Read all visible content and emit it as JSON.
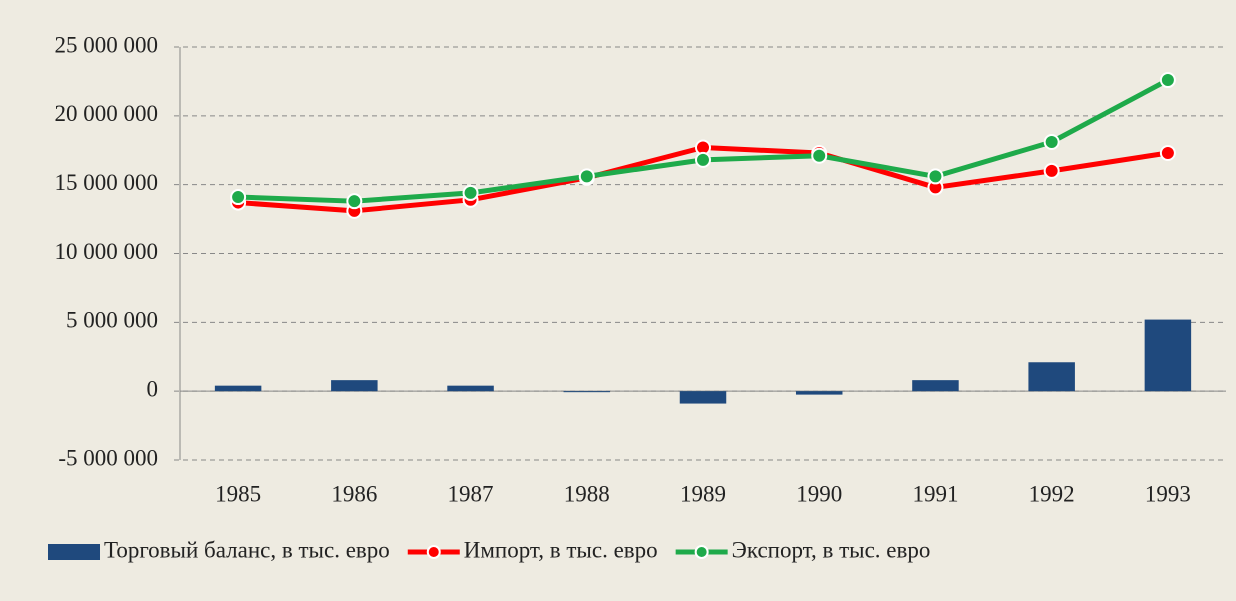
{
  "chart_data": {
    "type": "combo",
    "categories": [
      "1985",
      "1986",
      "1987",
      "1988",
      "1989",
      "1990",
      "1991",
      "1992",
      "1993"
    ],
    "series": [
      {
        "name": "Торговый баланс, в тыс. евро",
        "type": "bar",
        "color": "#1f497d",
        "values": [
          400000,
          800000,
          400000,
          -60000,
          -900000,
          -250000,
          800000,
          2100000,
          5200000
        ]
      },
      {
        "name": "Импорт, в тыс. евро",
        "type": "line",
        "color": "#ff0000",
        "values": [
          13700000,
          13100000,
          13900000,
          15500000,
          17700000,
          17300000,
          14800000,
          16000000,
          17300000
        ]
      },
      {
        "name": "Экспорт, в тыс. евро",
        "type": "line",
        "color": "#1eaa4a",
        "values": [
          14100000,
          13800000,
          14400000,
          15600000,
          16800000,
          17100000,
          15600000,
          18100000,
          22600000
        ]
      }
    ],
    "ylim": [
      -5000000,
      25000000
    ],
    "yticks": [
      {
        "value": -5000000,
        "label": "-5 000 000"
      },
      0,
      {
        "value": 5000000,
        "label": "5 000 000"
      },
      {
        "value": 10000000,
        "label": "10 000 000"
      },
      {
        "value": 15000000,
        "label": "15 000 000"
      },
      {
        "value": 20000000,
        "label": "20 000 000"
      },
      {
        "value": 25000000,
        "label": "25 000 000"
      }
    ],
    "grid": true,
    "legend": "bottom"
  }
}
